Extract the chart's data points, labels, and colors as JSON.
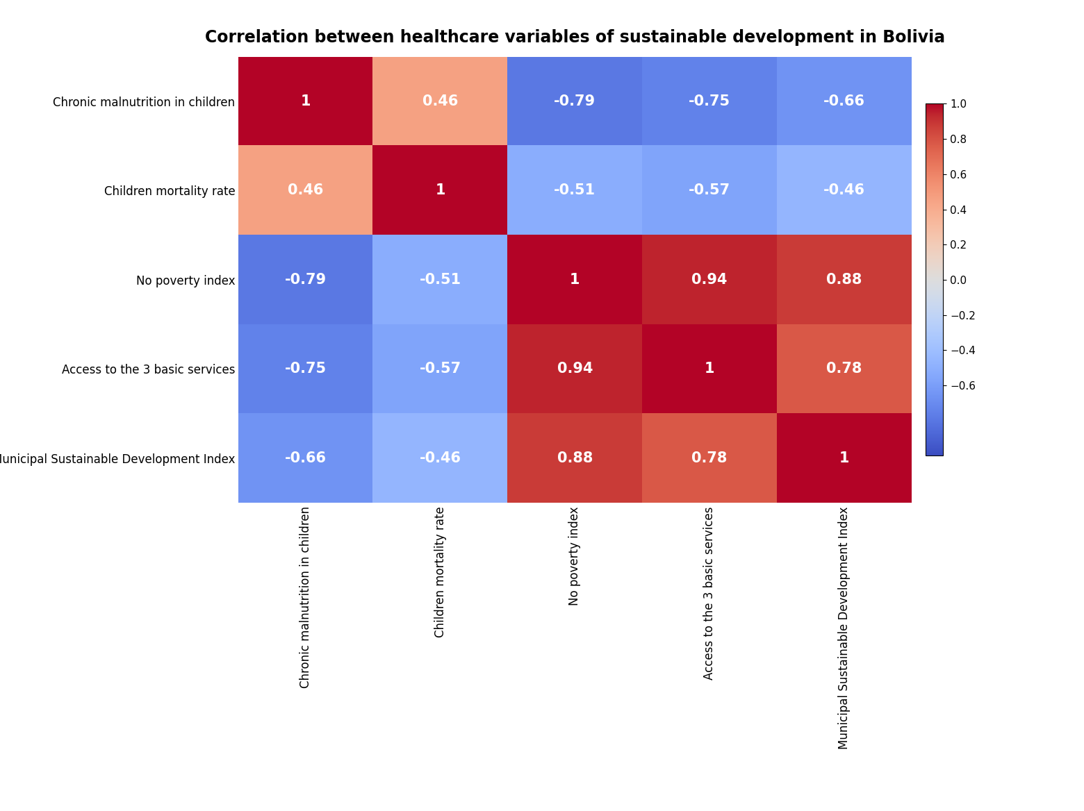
{
  "title": "Correlation between healthcare variables of sustainable development in Bolivia",
  "labels": [
    "Chronic malnutrition in children",
    "Children mortality rate",
    "No poverty index",
    "Access to the 3 basic services",
    "Municipal Sustainable Development Index"
  ],
  "matrix": [
    [
      1.0,
      0.46,
      -0.79,
      -0.75,
      -0.66
    ],
    [
      0.46,
      1.0,
      -0.51,
      -0.57,
      -0.46
    ],
    [
      -0.79,
      -0.51,
      1.0,
      0.94,
      0.88
    ],
    [
      -0.75,
      -0.57,
      0.94,
      1.0,
      0.78
    ],
    [
      -0.66,
      -0.46,
      0.88,
      0.78,
      1.0
    ]
  ],
  "cmap": "coolwarm",
  "vmin": -1.0,
  "vmax": 1.0,
  "title_fontsize": 17,
  "label_fontsize": 12,
  "annot_fontsize": 15,
  "colorbar_ticks": [
    1.0,
    0.8,
    0.6,
    0.4,
    0.2,
    0.0,
    -0.2,
    -0.4,
    -0.6
  ],
  "figure_facecolor": "#ffffff",
  "axes_facecolor": "#ffffff"
}
